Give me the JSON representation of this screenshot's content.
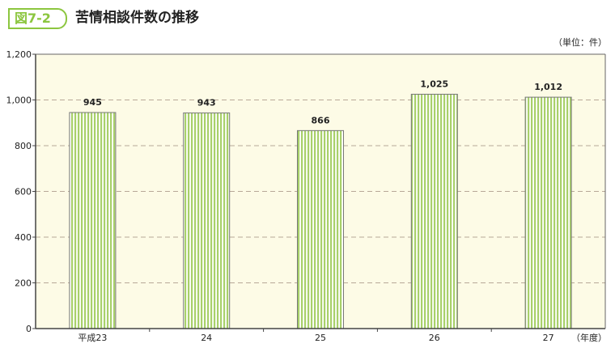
{
  "header": {
    "figure_label": "図7-2",
    "title": "苦情相談件数の推移",
    "unit": "（単位：件）"
  },
  "chart_data": {
    "type": "bar",
    "title": "苦情相談件数の推移",
    "categories": [
      "平成23",
      "24",
      "25",
      "26",
      "27"
    ],
    "values": [
      945,
      943,
      866,
      1025,
      1012
    ],
    "value_labels": [
      "945",
      "943",
      "866",
      "1,025",
      "1,012"
    ],
    "xlabel": "（年度）",
    "ylabel": "（単位：件）",
    "ylim": [
      0,
      1200
    ],
    "yticks": [
      0,
      200,
      400,
      600,
      800,
      1000,
      1200
    ],
    "ytick_labels": [
      "0",
      "200",
      "400",
      "600",
      "800",
      "1,000",
      "1,200"
    ],
    "grid": true,
    "colors": {
      "bar": "#a8d06a",
      "plot_bg": "#fdfbe6",
      "grid": "#b8a898",
      "accent": "#8cc63f"
    }
  }
}
